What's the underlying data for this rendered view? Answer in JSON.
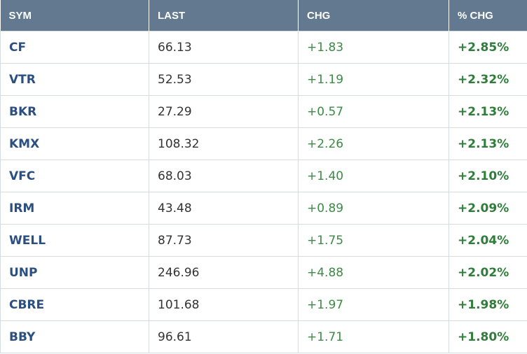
{
  "table": {
    "columns": [
      "SYM",
      "LAST",
      "CHG",
      "% CHG"
    ],
    "rows": [
      [
        "CF",
        "66.13",
        "+1.83",
        "+2.85%"
      ],
      [
        "VTR",
        "52.53",
        "+1.19",
        "+2.32%"
      ],
      [
        "BKR",
        "27.29",
        "+0.57",
        "+2.13%"
      ],
      [
        "KMX",
        "108.32",
        "+2.26",
        "+2.13%"
      ],
      [
        "VFC",
        "68.03",
        "+1.40",
        "+2.10%"
      ],
      [
        "IRM",
        "43.48",
        "+0.89",
        "+2.09%"
      ],
      [
        "WELL",
        "87.73",
        "+1.75",
        "+2.04%"
      ],
      [
        "UNP",
        "246.96",
        "+4.88",
        "+2.02%"
      ],
      [
        "CBRE",
        "101.68",
        "+1.97",
        "+1.98%"
      ],
      [
        "BBY",
        "96.61",
        "+1.71",
        "+1.80%"
      ]
    ]
  }
}
